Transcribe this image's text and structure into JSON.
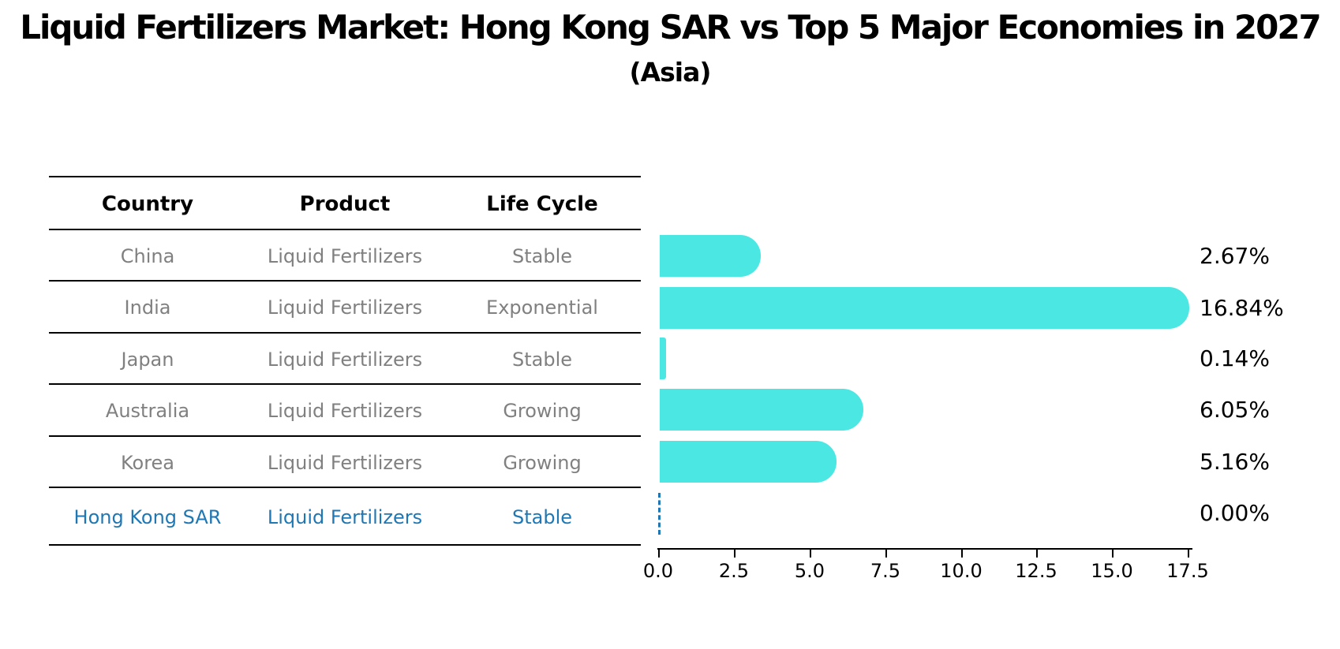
{
  "title": "Liquid Fertilizers Market: Hong Kong SAR vs Top 5 Major Economies in 2027",
  "subtitle": "(Asia)",
  "table": {
    "headers": [
      "Country",
      "Product",
      "Life Cycle"
    ],
    "rows": [
      {
        "country": "China",
        "product": "Liquid Fertilizers",
        "life_cycle": "Stable"
      },
      {
        "country": "India",
        "product": "Liquid Fertilizers",
        "life_cycle": "Exponential"
      },
      {
        "country": "Japan",
        "product": "Liquid Fertilizers",
        "life_cycle": "Stable"
      },
      {
        "country": "Australia",
        "product": "Liquid Fertilizers",
        "life_cycle": "Growing"
      },
      {
        "country": "Korea",
        "product": "Liquid Fertilizers",
        "life_cycle": "Growing"
      },
      {
        "country": "Hong Kong SAR",
        "product": "Liquid Fertilizers",
        "life_cycle": "Stable"
      }
    ],
    "highlight_row": "Hong Kong SAR"
  },
  "chart_data": {
    "type": "bar",
    "orientation": "horizontal",
    "title": "Liquid Fertilizers Market: Hong Kong SAR vs Top 5 Major Economies in 2027 (Asia)",
    "categories": [
      "China",
      "India",
      "Japan",
      "Australia",
      "Korea",
      "Hong Kong SAR"
    ],
    "values": [
      2.67,
      16.84,
      0.14,
      6.05,
      5.16,
      0.0
    ],
    "value_labels": [
      "2.67%",
      "16.84%",
      "0.14%",
      "6.05%",
      "5.16%",
      "0.00%"
    ],
    "xlabel": "",
    "ylabel": "",
    "xlim": [
      0,
      17.5
    ],
    "xticks": [
      0.0,
      2.5,
      5.0,
      7.5,
      10.0,
      12.5,
      15.0,
      17.5
    ],
    "xtick_labels": [
      "0.0",
      "2.5",
      "5.0",
      "7.5",
      "10.0",
      "12.5",
      "15.0",
      "17.5"
    ],
    "grid": false,
    "legend": false,
    "zero_value_marker": "dashed-line"
  },
  "colors": {
    "bar": "#4BE7E3",
    "highlight_text": "#1f77b4",
    "row_text": "#808080",
    "header_text": "#000000",
    "zero_marker": "#1f77b4"
  }
}
